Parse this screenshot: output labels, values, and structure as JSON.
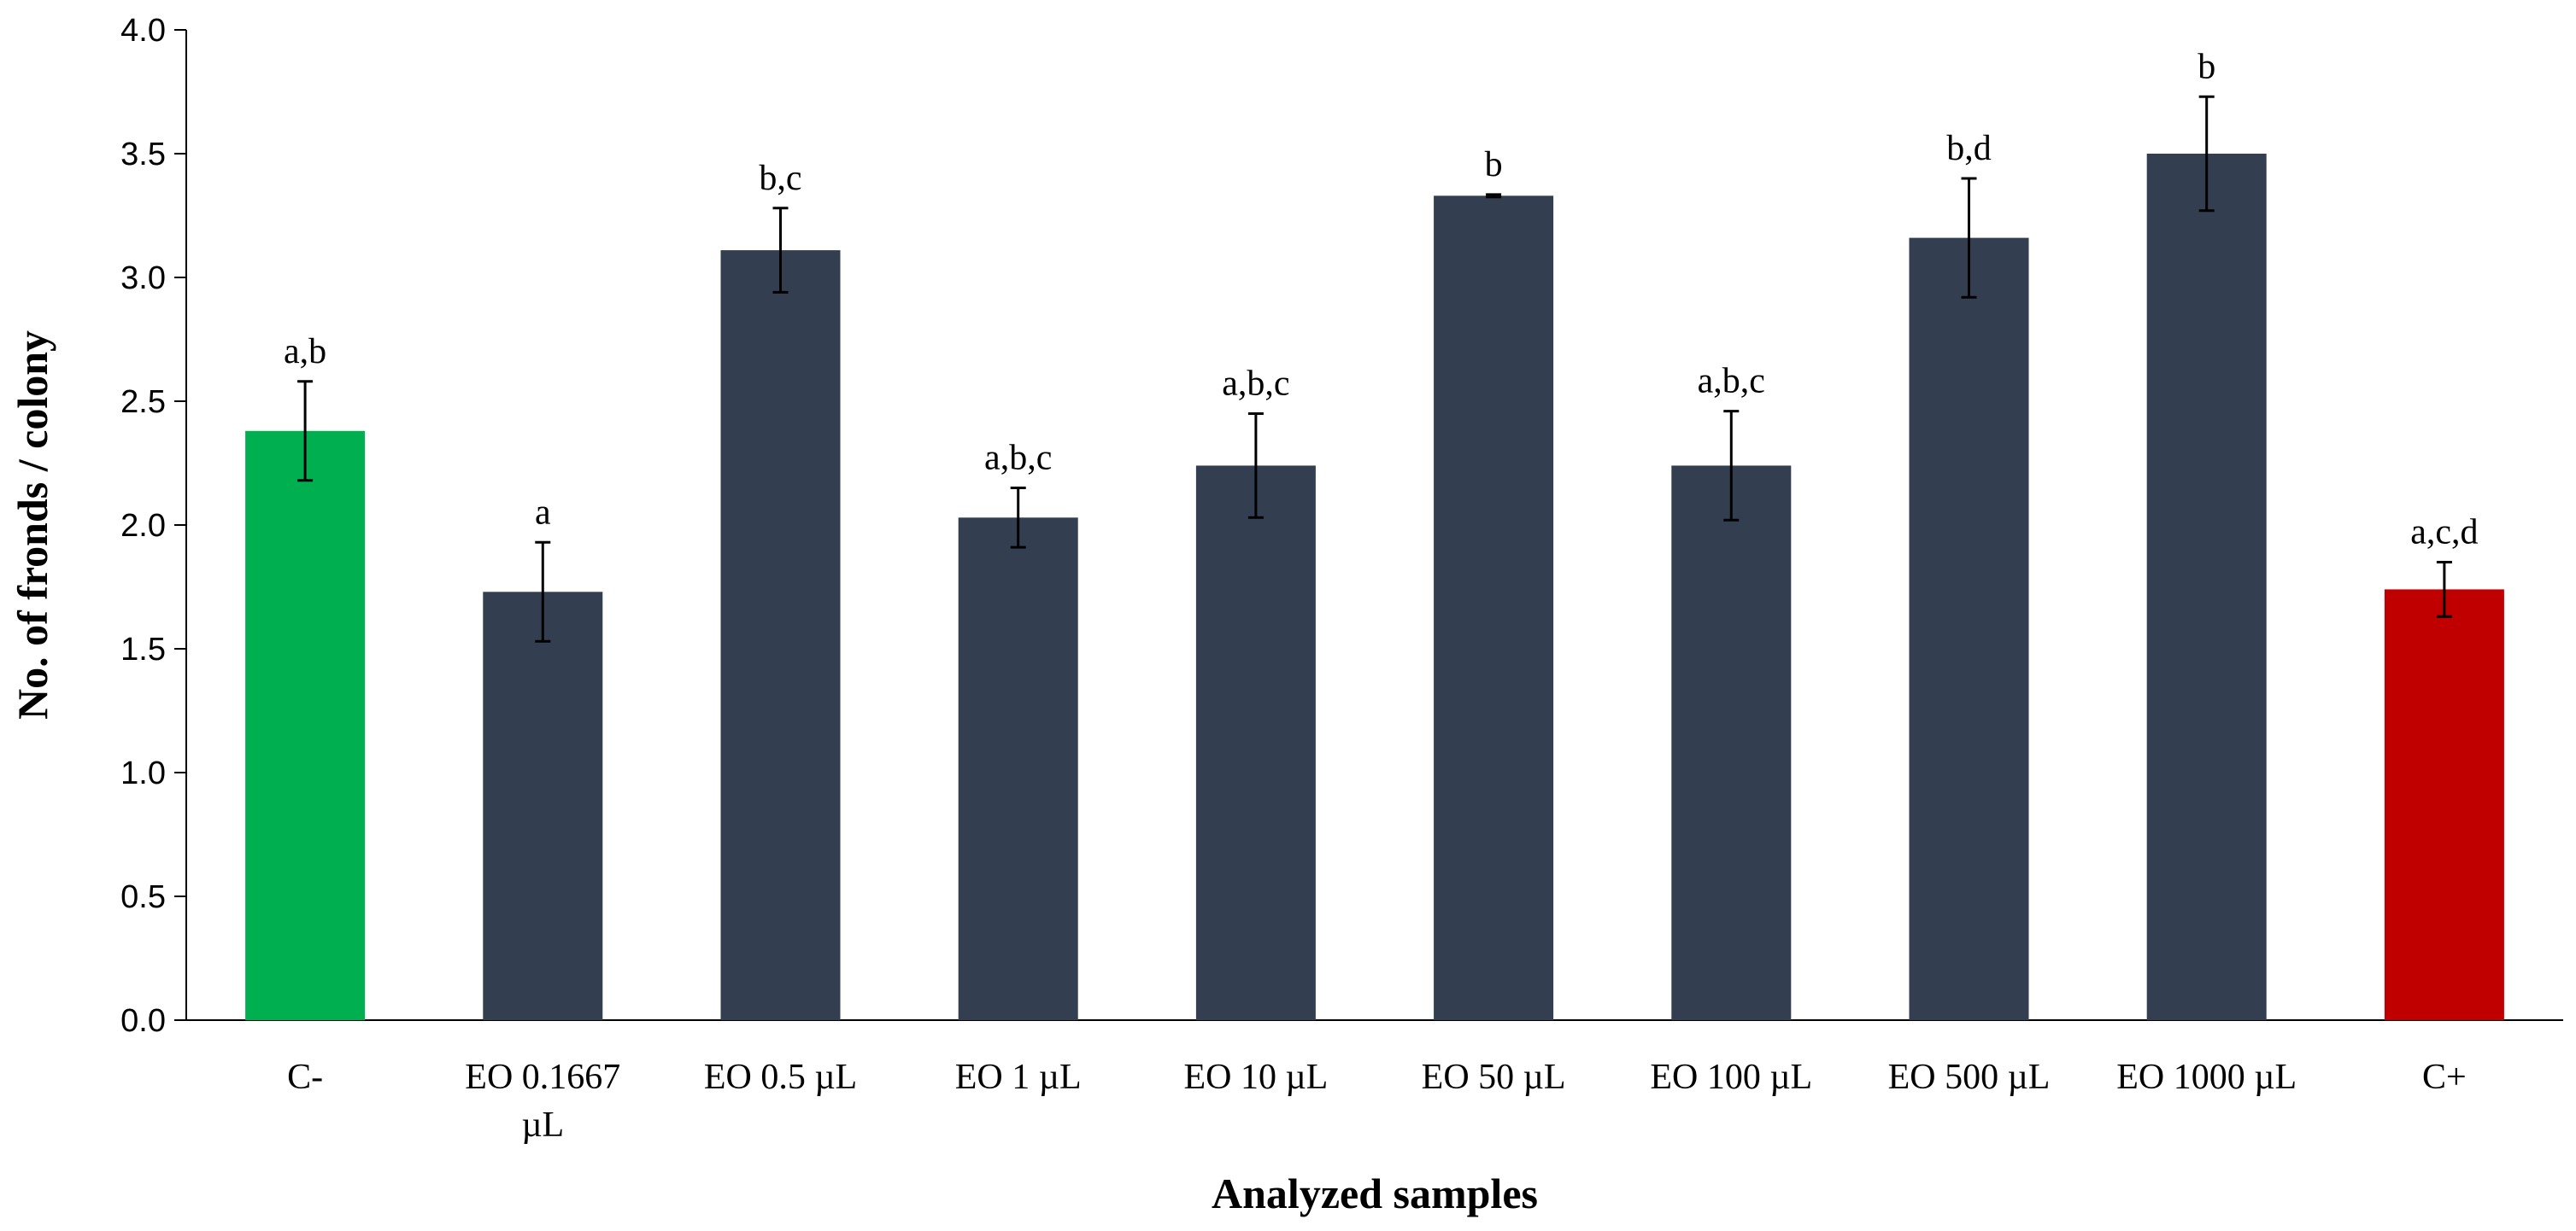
{
  "chart_data": {
    "type": "bar",
    "title": "",
    "xlabel": "Analyzed samples",
    "ylabel": "No. of fronds / colony",
    "ylim": [
      0,
      4.0
    ],
    "yticks": [
      "0.0",
      "0.5",
      "1.0",
      "1.5",
      "2.0",
      "2.5",
      "3.0",
      "3.5",
      "4.0"
    ],
    "grid": false,
    "legend": "none",
    "categories": [
      [
        "C-"
      ],
      [
        "EO 0.1667",
        "µL"
      ],
      [
        "EO 0.5 µL"
      ],
      [
        "EO 1 µL"
      ],
      [
        "EO 10 µL"
      ],
      [
        "EO 50 µL"
      ],
      [
        "EO 100 µL"
      ],
      [
        "EO 500 µL"
      ],
      [
        "EO 1000 µL"
      ],
      [
        "C+"
      ]
    ],
    "values": [
      2.38,
      1.73,
      3.11,
      2.03,
      2.24,
      3.33,
      2.24,
      3.16,
      3.5,
      1.74
    ],
    "errors": [
      0.2,
      0.2,
      0.17,
      0.12,
      0.21,
      0.005,
      0.22,
      0.24,
      0.23,
      0.11
    ],
    "significance": [
      "a,b",
      "a",
      "b,c",
      "a,b,c",
      "a,b,c",
      "b",
      "a,b,c",
      "b,d",
      "b",
      "a,c,d"
    ],
    "colors": [
      "#00b050",
      "#333f50",
      "#333f50",
      "#333f50",
      "#333f50",
      "#333f50",
      "#333f50",
      "#333f50",
      "#333f50",
      "#c00000"
    ]
  }
}
